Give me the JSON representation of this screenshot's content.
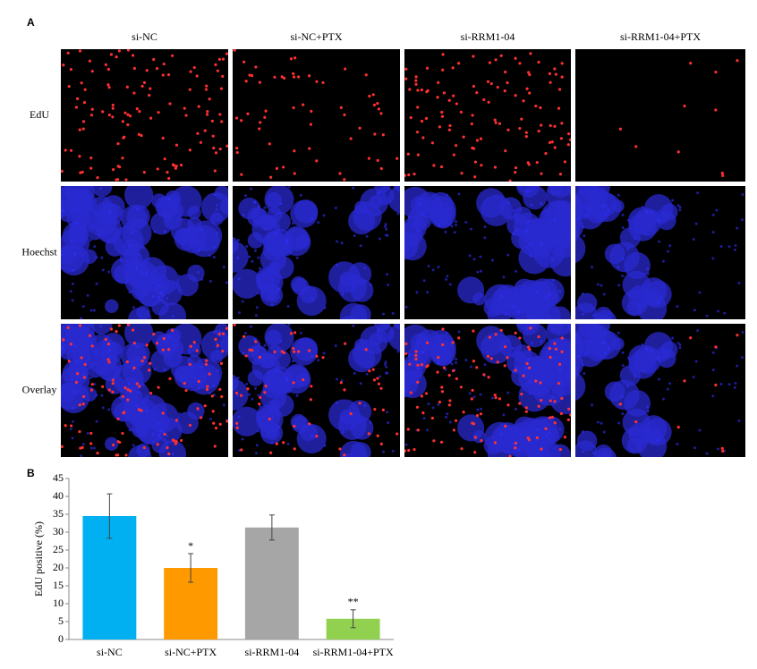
{
  "panel_a": {
    "label": "A",
    "columns": [
      "si-NC",
      "si-NC+PTX",
      "si-RRM1-04",
      "si-RRM1-04+PTX"
    ],
    "rows": [
      "EdU",
      "Hoechst",
      "Overlay"
    ]
  },
  "chart_data": {
    "type": "bar",
    "panel_label": "B",
    "ylabel": "EdU positive (%)",
    "categories": [
      "si-NC",
      "si-NC+PTX",
      "si-RRM1-04",
      "si-RRM1-04+PTX"
    ],
    "values": [
      34.5,
      20,
      31.3,
      5.8
    ],
    "errors": [
      6.2,
      4,
      3.5,
      2.5
    ],
    "colors": [
      "#00b0f0",
      "#ff9900",
      "#a6a6a6",
      "#92d050"
    ],
    "significance": [
      null,
      "*",
      null,
      "**"
    ],
    "ylim": [
      0,
      45
    ],
    "yticks": [
      0,
      5,
      10,
      15,
      20,
      25,
      30,
      35,
      40,
      45
    ],
    "grid": false
  }
}
